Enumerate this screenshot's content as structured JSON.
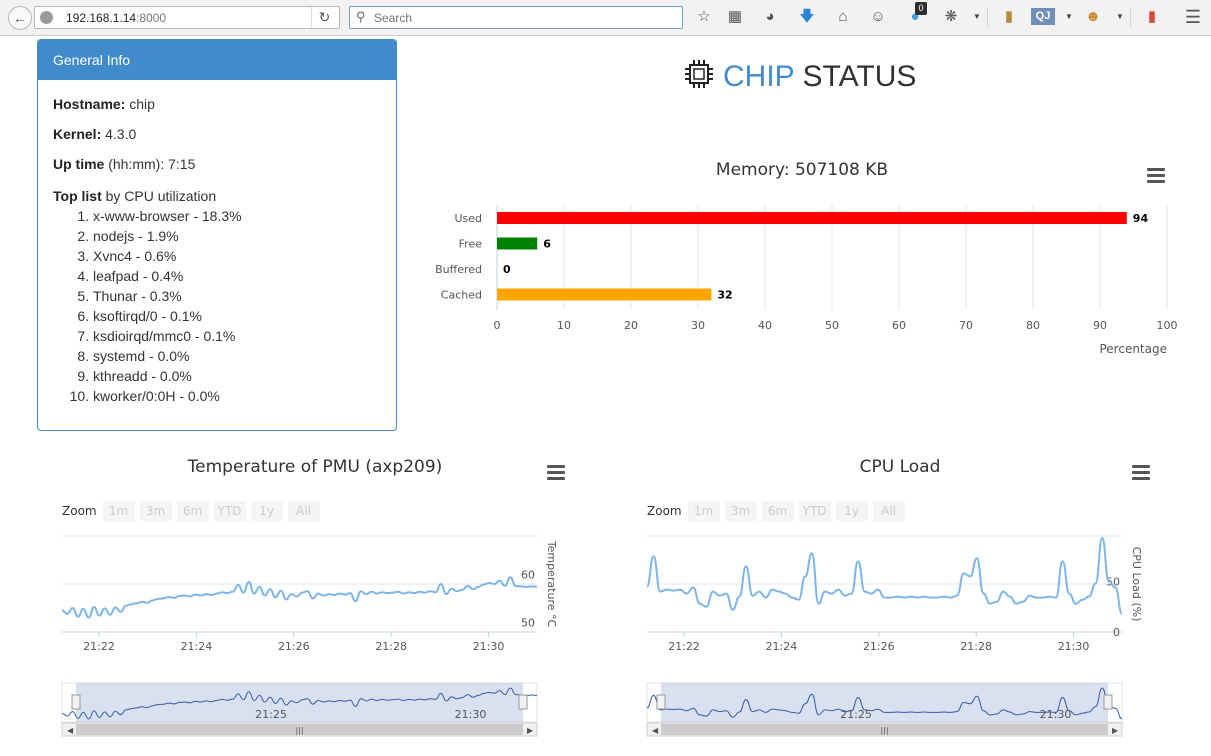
{
  "browser": {
    "url_host": "192.168.1.14",
    "url_port": ":8000",
    "search_placeholder": "Search",
    "notification_count": "0",
    "qj_label": "QJ"
  },
  "info": {
    "heading": "General Info",
    "hostname_label": "Hostname:",
    "hostname": "chip",
    "kernel_label": "Kernel:",
    "kernel": "4.3.0",
    "uptime_label": "Up time",
    "uptime_unit": "(hh:mm):",
    "uptime": "7:15",
    "toplist_label": "Top list",
    "toplist_suffix": "by CPU utilization",
    "toplist": [
      "x-www-browser - 18.3%",
      "nodejs - 1.9%",
      "Xvnc4 - 0.6%",
      "leafpad - 0.4%",
      "Thunar - 0.3%",
      "ksoftirqd/0 - 0.1%",
      "ksdioirqd/mmc0 - 0.1%",
      "systemd - 0.0%",
      "kthreadd - 0.0%",
      "kworker/0:0H - 0.0%"
    ]
  },
  "title": {
    "part1": "CHIP",
    "part2": "STATUS"
  },
  "zoom": {
    "label": "Zoom",
    "buttons": [
      "1m",
      "3m",
      "6m",
      "YTD",
      "1y",
      "All"
    ]
  },
  "colors": {
    "accent": "#428bca",
    "used": "#ff0000",
    "free": "#008000",
    "cached": "#ffa500",
    "line": "#7cb5ec"
  },
  "chart_data": [
    {
      "type": "bar",
      "orientation": "horizontal",
      "title": "Memory: 507108 KB",
      "categories": [
        "Used",
        "Free",
        "Buffered",
        "Cached"
      ],
      "values": [
        94,
        6,
        0,
        32
      ],
      "colors": [
        "#ff0000",
        "#008000",
        "#000000",
        "#ffa500"
      ],
      "xlabel": "Percentage",
      "xlim": [
        0,
        100
      ],
      "xticks": [
        0,
        10,
        20,
        30,
        40,
        50,
        60,
        70,
        80,
        90,
        100
      ],
      "data_labels": true,
      "grid": true
    },
    {
      "type": "line",
      "title": "Temperature of PMU (axp209)",
      "ylabel": "Temperature °C",
      "yticks": [
        50,
        60
      ],
      "ylim": [
        48,
        68
      ],
      "xticks": [
        "21:22",
        "21:24",
        "21:26",
        "21:28",
        "21:30"
      ],
      "navigator_ticks": [
        "21:25",
        "21:30"
      ],
      "series": [
        {
          "values": [
            52.5,
            51.8,
            53.0,
            51.2,
            52.8,
            51.0,
            53.2,
            51.4,
            52.9,
            51.6,
            53.1,
            52.2,
            53.5,
            53.8,
            54.0,
            54.3,
            54.1,
            54.6,
            54.9,
            55.0,
            55.3,
            55.1,
            55.5,
            55.6,
            55.4,
            55.8,
            55.6,
            55.9,
            55.7,
            56.0,
            56.3,
            56.1,
            56.4,
            57.8,
            56.2,
            58.4,
            56.0,
            57.4,
            55.6,
            56.9,
            55.2,
            56.6,
            54.8,
            55.9,
            55.4,
            56.2,
            56.5,
            55.0,
            56.0,
            55.6,
            55.9,
            55.7,
            56.0,
            55.8,
            56.1,
            54.4,
            56.5,
            55.9,
            56.4,
            56.0,
            56.3,
            56.1,
            56.2,
            56.4,
            56.0,
            56.3,
            56.1,
            56.4,
            56.2,
            56.5,
            56.3,
            58.0,
            55.9,
            57.0,
            56.5,
            56.8,
            57.6,
            56.9,
            57.4,
            57.9,
            58.2,
            58.0,
            58.7,
            57.6,
            59.4,
            57.6,
            57.5,
            57.4,
            57.5,
            57.4
          ]
        }
      ]
    },
    {
      "type": "line",
      "title": "CPU Load",
      "ylabel": "CPU Load (%)",
      "yticks": [
        0,
        50
      ],
      "ylim": [
        0,
        95
      ],
      "xticks": [
        "21:22",
        "21:24",
        "21:26",
        "21:28",
        "21:30"
      ],
      "navigator_ticks": [
        "21:25",
        "21:30"
      ],
      "series": [
        {
          "values": [
            45,
            75,
            40,
            42,
            41,
            42,
            38,
            44,
            28,
            25,
            40,
            36,
            38,
            22,
            35,
            65,
            36,
            40,
            34,
            42,
            40,
            38,
            34,
            32,
            55,
            78,
            28,
            40,
            38,
            42,
            36,
            38,
            70,
            40,
            38,
            42,
            34,
            34,
            35,
            34,
            35,
            34,
            35,
            34,
            34,
            35,
            34,
            36,
            58,
            55,
            73,
            38,
            28,
            30,
            40,
            35,
            28,
            30,
            36,
            34,
            34,
            35,
            34,
            70,
            38,
            28,
            32,
            35,
            48,
            93,
            50,
            44,
            18
          ]
        }
      ]
    }
  ]
}
